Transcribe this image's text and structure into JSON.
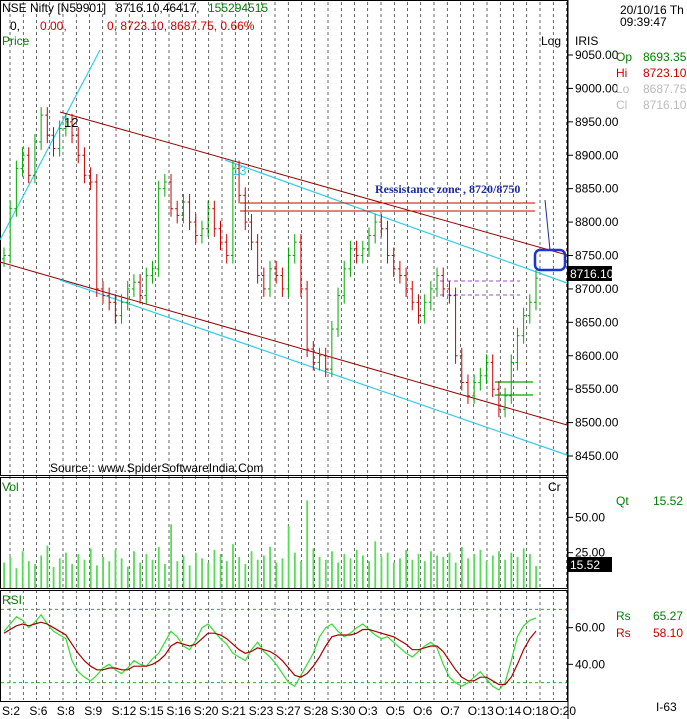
{
  "header": {
    "symbol": "NSE Nifty [N59901]",
    "quote": "8716.10,46417,",
    "volume": "155294515",
    "line2_a": "0,",
    "line2_b": "0.00,",
    "line2_c": "0, 8723.10, 8687.75, 0.66%",
    "price_label": "Price",
    "log_label": "Log",
    "iris_label": "IRIS",
    "source": "Source : www.SpiderSoftwareIndia.Com",
    "colors": {
      "text": "#000000",
      "green": "#008000",
      "red": "#cc0000",
      "grid": "#000000"
    }
  },
  "sidepanel": {
    "date": "20/10/16 Th",
    "time": "09:39:47",
    "op_label": "Op",
    "op_value": "8693.35",
    "hi_label": "Hi",
    "hi_value": "8723.10",
    "lo_label": "Lo",
    "lo_value": "8687.75",
    "cl_label": "Cl",
    "cl_value": "8716.10",
    "qt_label": "Qt",
    "qt_value": "15.52",
    "rs1_label": "Rs",
    "rs1_value": "65.27",
    "rs2_label": "Rs",
    "rs2_value": "58.10",
    "footer": "I-63"
  },
  "chart_data": [
    {
      "type": "candlestick",
      "panel": "price",
      "title": "NSE Nifty [N59901]",
      "ylabel": "Price",
      "scale": "Log",
      "ylim": [
        8430,
        9065
      ],
      "yticks": [
        "9050.00",
        "9000.00",
        "8950.00",
        "8900.00",
        "8850.00",
        "8800.00",
        "8750.00",
        "8700.00",
        "8650.00",
        "8600.00",
        "8550.00",
        "8500.00",
        "8450.00"
      ],
      "last_price_label": "8716.10",
      "annotation": "Ressistance zone , 8720/8750",
      "wave_labels": [
        "12",
        "13"
      ],
      "closes": [
        8750,
        8820,
        8880,
        8900,
        8870,
        8920,
        8960,
        8930,
        8910,
        8940,
        8950,
        8930,
        8900,
        8870,
        8860,
        8700,
        8690,
        8680,
        8660,
        8680,
        8700,
        8710,
        8690,
        8720,
        8730,
        8850,
        8860,
        8820,
        8810,
        8830,
        8800,
        8780,
        8790,
        8820,
        8790,
        8770,
        8750,
        8880,
        8840,
        8800,
        8770,
        8720,
        8700,
        8730,
        8720,
        8700,
        8750,
        8770,
        8700,
        8610,
        8590,
        8600,
        8580,
        8640,
        8690,
        8730,
        8760,
        8750,
        8760,
        8780,
        8800,
        8790,
        8750,
        8730,
        8720,
        8700,
        8680,
        8660,
        8680,
        8700,
        8720,
        8700,
        8690,
        8600,
        8560,
        8540,
        8560,
        8570,
        8590,
        8550,
        8520,
        8540,
        8590,
        8630,
        8660,
        8680,
        8716.1
      ],
      "ohlc_sample": {
        "open": 8693.35,
        "high": 8723.1,
        "low": 8687.75,
        "close": 8716.1
      }
    },
    {
      "type": "bar",
      "panel": "volume",
      "ylabel": "Vol",
      "legend": "Cr",
      "yticks": [
        "50.00",
        "25.00"
      ],
      "last_value_label": "15.52",
      "values": [
        18,
        22,
        14,
        26,
        19,
        17,
        23,
        30,
        15,
        21,
        25,
        17,
        24,
        20,
        28,
        16,
        22,
        19,
        27,
        21,
        15,
        26,
        18,
        24,
        20,
        29,
        17,
        45,
        19,
        23,
        16,
        25,
        21,
        18,
        27,
        24,
        19,
        31,
        22,
        17,
        26,
        20,
        23,
        29,
        18,
        21,
        44,
        25,
        19,
        62,
        28,
        22,
        20,
        26,
        18,
        24,
        21,
        27,
        23,
        19,
        33,
        22,
        25,
        18,
        21,
        27,
        20,
        24,
        19,
        26,
        23,
        22,
        25,
        18,
        29,
        21,
        24,
        27,
        19,
        23,
        26,
        20,
        25,
        22,
        28,
        24,
        15.52
      ]
    },
    {
      "type": "line",
      "panel": "rsi",
      "ylabel": "RSI",
      "yticks": [
        "60.00",
        "40.00"
      ],
      "series": [
        {
          "name": "Rs",
          "last": 65.27,
          "values": [
            58,
            62,
            66,
            64,
            60,
            63,
            67,
            62,
            58,
            56,
            54,
            42,
            36,
            33,
            31,
            34,
            38,
            40,
            37,
            35,
            38,
            42,
            40,
            39,
            43,
            46,
            52,
            58,
            55,
            50,
            48,
            53,
            60,
            62,
            58,
            54,
            51,
            46,
            44,
            42,
            48,
            52,
            47,
            44,
            40,
            35,
            30,
            28,
            34,
            40,
            46,
            55,
            60,
            62,
            58,
            55,
            57,
            60,
            62,
            59,
            56,
            54,
            55,
            52,
            49,
            46,
            44,
            47,
            50,
            52,
            49,
            40,
            33,
            30,
            28,
            30,
            33,
            36,
            32,
            28,
            26,
            30,
            42,
            55,
            61,
            64,
            65.27
          ]
        },
        {
          "name": "Rs",
          "last": 58.1,
          "values": [
            57,
            59,
            61,
            62,
            61,
            62,
            63,
            62,
            60,
            58,
            56,
            51,
            46,
            42,
            39,
            37,
            37,
            38,
            38,
            37,
            37,
            39,
            39,
            39,
            40,
            42,
            45,
            50,
            52,
            51,
            50,
            51,
            54,
            57,
            57,
            56,
            54,
            51,
            48,
            46,
            47,
            49,
            48,
            47,
            45,
            42,
            38,
            34,
            33,
            35,
            39,
            44,
            50,
            55,
            56,
            56,
            56,
            57,
            59,
            59,
            58,
            57,
            56,
            55,
            53,
            51,
            48,
            48,
            49,
            50,
            50,
            47,
            42,
            37,
            33,
            31,
            31,
            33,
            33,
            31,
            29,
            29,
            33,
            40,
            48,
            54,
            58.1
          ]
        }
      ]
    }
  ],
  "time_axis": [
    "S:2",
    "S:6",
    "S:8",
    "S:9",
    "S:12",
    "S:15",
    "S:16",
    "S:20",
    "S:21",
    "S:23",
    "S:27",
    "S:28",
    "S:30",
    "O:3",
    "O:5",
    "O:6",
    "O:7",
    "O:13",
    "O:14",
    "O:18",
    "O:20"
  ]
}
